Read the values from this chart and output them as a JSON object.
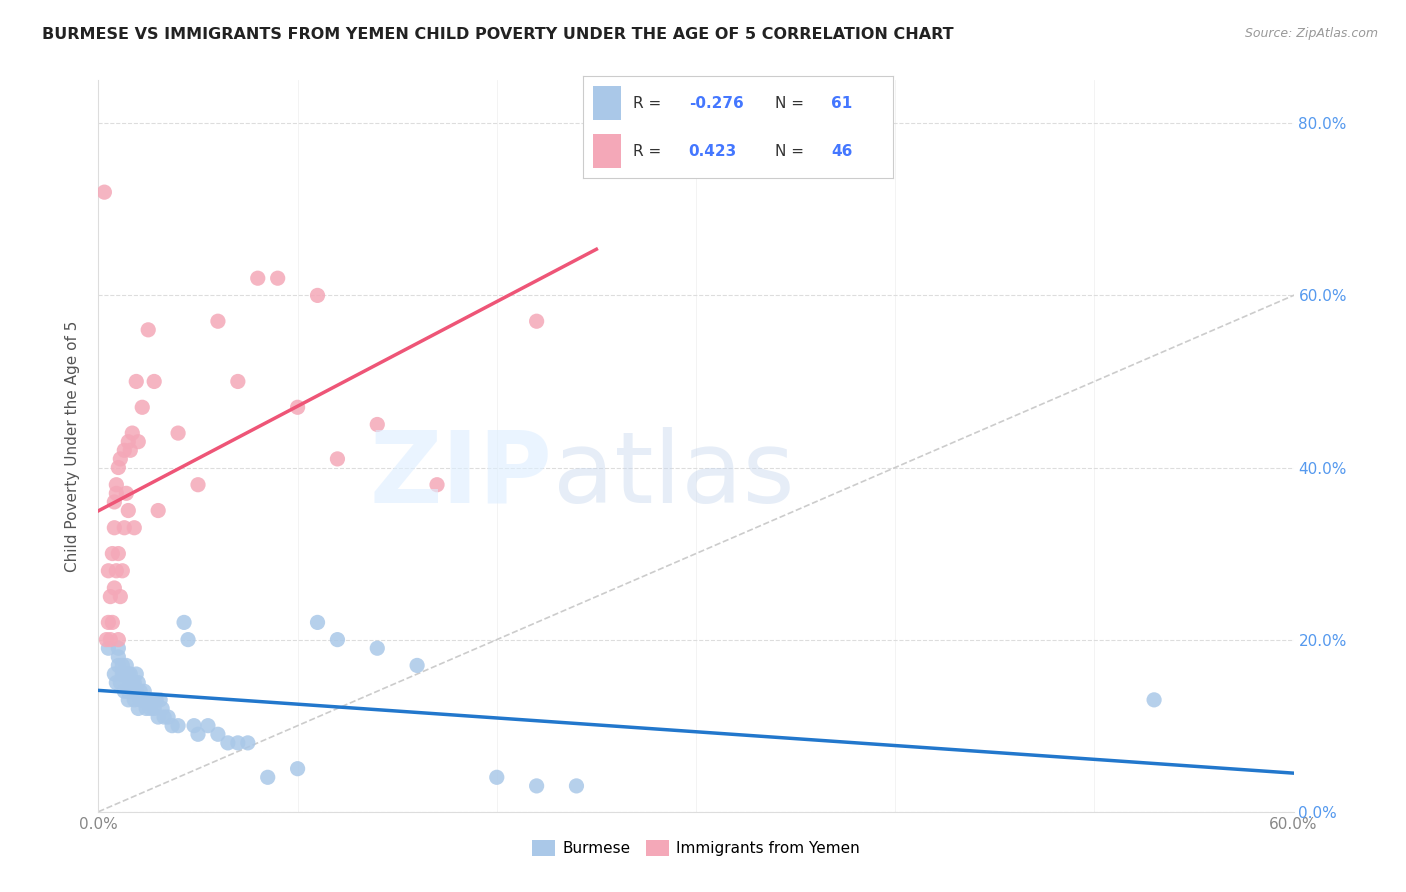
{
  "title": "BURMESE VS IMMIGRANTS FROM YEMEN CHILD POVERTY UNDER THE AGE OF 5 CORRELATION CHART",
  "source": "Source: ZipAtlas.com",
  "ylabel": "Child Poverty Under the Age of 5",
  "xlim": [
    0.0,
    0.6
  ],
  "ylim": [
    0.0,
    0.85
  ],
  "xtick_labels": [
    "0.0%",
    "",
    "",
    "",
    "",
    "",
    "60.0%"
  ],
  "xtick_values": [
    0.0,
    0.1,
    0.2,
    0.3,
    0.4,
    0.5,
    0.6
  ],
  "ytick_labels": [
    "0.0%",
    "20.0%",
    "40.0%",
    "60.0%",
    "80.0%"
  ],
  "ytick_values": [
    0.0,
    0.2,
    0.4,
    0.6,
    0.8
  ],
  "legend_labels": [
    "Burmese",
    "Immigrants from Yemen"
  ],
  "legend_R": [
    -0.276,
    0.423
  ],
  "legend_N": [
    61,
    46
  ],
  "burmese_color": "#aac8e8",
  "yemen_color": "#f4a8b8",
  "burmese_line_color": "#2277cc",
  "yemen_line_color": "#ee5577",
  "diagonal_color": "#cccccc",
  "burmese_x": [
    0.005,
    0.008,
    0.009,
    0.01,
    0.01,
    0.01,
    0.011,
    0.012,
    0.012,
    0.013,
    0.013,
    0.014,
    0.015,
    0.015,
    0.015,
    0.016,
    0.016,
    0.017,
    0.017,
    0.018,
    0.018,
    0.019,
    0.019,
    0.02,
    0.02,
    0.021,
    0.021,
    0.022,
    0.023,
    0.024,
    0.025,
    0.026,
    0.027,
    0.028,
    0.029,
    0.03,
    0.031,
    0.032,
    0.033,
    0.035,
    0.037,
    0.04,
    0.043,
    0.045,
    0.048,
    0.05,
    0.055,
    0.06,
    0.065,
    0.07,
    0.075,
    0.085,
    0.1,
    0.11,
    0.12,
    0.14,
    0.16,
    0.2,
    0.22,
    0.24,
    0.53
  ],
  "burmese_y": [
    0.19,
    0.16,
    0.15,
    0.17,
    0.18,
    0.19,
    0.15,
    0.16,
    0.17,
    0.14,
    0.16,
    0.17,
    0.13,
    0.14,
    0.16,
    0.15,
    0.16,
    0.14,
    0.15,
    0.13,
    0.15,
    0.14,
    0.16,
    0.12,
    0.15,
    0.13,
    0.14,
    0.13,
    0.14,
    0.12,
    0.13,
    0.12,
    0.13,
    0.12,
    0.13,
    0.11,
    0.13,
    0.12,
    0.11,
    0.11,
    0.1,
    0.1,
    0.22,
    0.2,
    0.1,
    0.09,
    0.1,
    0.09,
    0.08,
    0.08,
    0.08,
    0.04,
    0.05,
    0.22,
    0.2,
    0.19,
    0.17,
    0.04,
    0.03,
    0.03,
    0.13
  ],
  "yemen_x": [
    0.003,
    0.004,
    0.005,
    0.005,
    0.006,
    0.006,
    0.007,
    0.007,
    0.008,
    0.008,
    0.008,
    0.009,
    0.009,
    0.009,
    0.01,
    0.01,
    0.01,
    0.011,
    0.011,
    0.012,
    0.013,
    0.013,
    0.014,
    0.015,
    0.015,
    0.016,
    0.017,
    0.018,
    0.019,
    0.02,
    0.022,
    0.025,
    0.028,
    0.03,
    0.04,
    0.05,
    0.06,
    0.07,
    0.08,
    0.09,
    0.1,
    0.11,
    0.12,
    0.14,
    0.17,
    0.22
  ],
  "yemen_y": [
    0.72,
    0.2,
    0.22,
    0.28,
    0.2,
    0.25,
    0.22,
    0.3,
    0.26,
    0.33,
    0.36,
    0.28,
    0.37,
    0.38,
    0.2,
    0.3,
    0.4,
    0.25,
    0.41,
    0.28,
    0.33,
    0.42,
    0.37,
    0.35,
    0.43,
    0.42,
    0.44,
    0.33,
    0.5,
    0.43,
    0.47,
    0.56,
    0.5,
    0.35,
    0.44,
    0.38,
    0.57,
    0.5,
    0.62,
    0.62,
    0.47,
    0.6,
    0.41,
    0.45,
    0.38,
    0.57
  ],
  "background_color": "#ffffff",
  "grid_color": "#dddddd"
}
